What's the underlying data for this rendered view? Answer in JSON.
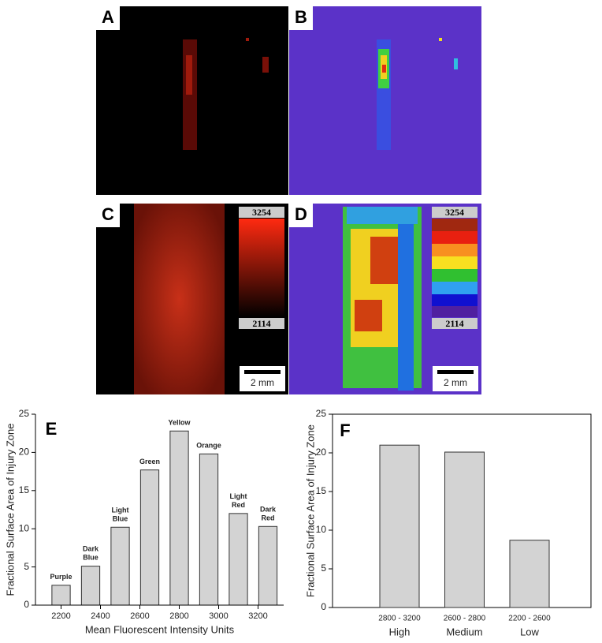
{
  "image_panels": {
    "labels": [
      "A",
      "B",
      "C",
      "D"
    ],
    "colorbar_max": "3254",
    "colorbar_min": "2114",
    "scale_bar": "2 mm"
  },
  "chart_data": [
    {
      "type": "bar",
      "panel_label": "E",
      "x_label": "Mean Fluorescent Intensity Units",
      "y_label": "Fractional Surface Area of Injury Zone",
      "x": [
        2200,
        2350,
        2500,
        2650,
        2800,
        2950,
        3100,
        3250
      ],
      "bar_labels": [
        "Purple",
        "Dark Blue",
        "Light Blue",
        "Green",
        "Yellow",
        "Orange",
        "Light Red",
        "Dark Red"
      ],
      "values": [
        2.6,
        5.1,
        10.2,
        17.7,
        22.8,
        19.8,
        12.0,
        10.3
      ],
      "color": "#d3d3d3",
      "xlim": [
        2070,
        3330
      ],
      "xticks": [
        2200,
        2400,
        2600,
        2800,
        3000,
        3200
      ],
      "ylim": [
        0,
        25
      ],
      "yticks": [
        0,
        5,
        10,
        15,
        20,
        25
      ]
    },
    {
      "type": "bar",
      "panel_label": "F",
      "y_label": "Fractional Surface Area of Injury Zone",
      "categories": [
        "High",
        "Medium",
        "Low"
      ],
      "range_labels": [
        "2800 - 3200",
        "2600 - 2800",
        "2200 - 2600"
      ],
      "values": [
        21.0,
        20.1,
        8.7
      ],
      "color": "#d3d3d3",
      "ylim": [
        0,
        25
      ],
      "yticks": [
        0,
        5,
        10,
        15,
        20,
        25
      ]
    }
  ]
}
